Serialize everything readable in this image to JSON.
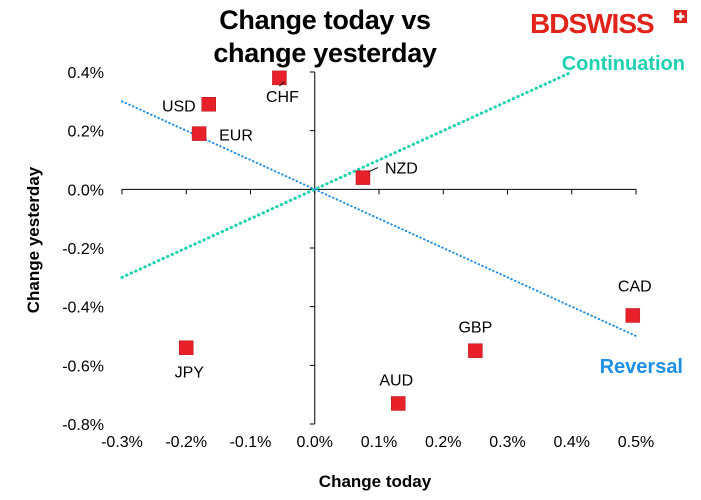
{
  "title_line1": "Change today vs",
  "title_line2": "change yesterday",
  "logo": {
    "text": "BDSWISS",
    "color": "#E2231A"
  },
  "annotations": {
    "continuation": "Continuation",
    "reversal": "Reversal"
  },
  "colors": {
    "continuation_line": "#1ED1B0",
    "reversal_line": "#1E8FE6",
    "marker": "#E8202A",
    "axis": "#000000"
  },
  "chart_data": {
    "type": "scatter",
    "xlabel": "Change today",
    "ylabel": "Change yesterday",
    "xlim": [
      -0.3,
      0.5
    ],
    "ylim": [
      -0.8,
      0.4
    ],
    "x_ticks": [
      -0.3,
      -0.2,
      -0.1,
      0.0,
      0.1,
      0.2,
      0.3,
      0.4,
      0.5
    ],
    "y_ticks": [
      0.4,
      0.2,
      0.0,
      -0.2,
      -0.4,
      -0.6,
      -0.8
    ],
    "x_tick_labels": [
      "-0.3%",
      "-0.2%",
      "-0.1%",
      "0.0%",
      "0.1%",
      "0.2%",
      "0.3%",
      "0.4%",
      "0.5%"
    ],
    "y_tick_labels": [
      "0.4%",
      "0.2%",
      "0.0%",
      "-0.2%",
      "-0.4%",
      "-0.6%",
      "-0.8%"
    ],
    "grid": false,
    "points": [
      {
        "label": "USD",
        "x": -0.165,
        "y": 0.29
      },
      {
        "label": "EUR",
        "x": -0.18,
        "y": 0.19
      },
      {
        "label": "CHF",
        "x": -0.055,
        "y": 0.38
      },
      {
        "label": "NZD",
        "x": 0.075,
        "y": 0.04
      },
      {
        "label": "JPY",
        "x": -0.2,
        "y": -0.54
      },
      {
        "label": "AUD",
        "x": 0.13,
        "y": -0.73
      },
      {
        "label": "GBP",
        "x": 0.25,
        "y": -0.55
      },
      {
        "label": "CAD",
        "x": 0.495,
        "y": -0.43
      }
    ],
    "trend_lines": [
      {
        "name": "Continuation",
        "from": [
          -0.3,
          -0.3
        ],
        "to": [
          0.4,
          0.4
        ]
      },
      {
        "name": "Reversal",
        "from": [
          -0.3,
          0.3
        ],
        "to": [
          0.5,
          -0.5
        ]
      }
    ]
  }
}
